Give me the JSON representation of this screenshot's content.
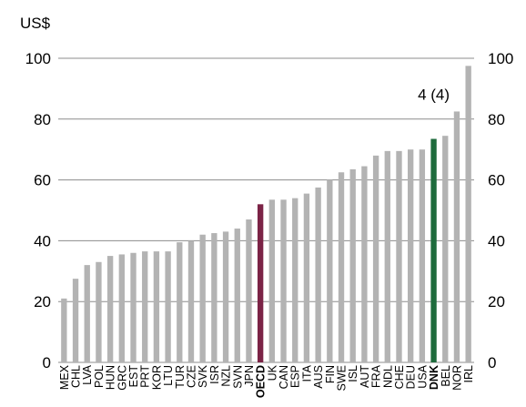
{
  "chart_data": {
    "type": "bar",
    "unit_label": "US$",
    "annotation": "4 (4)",
    "ylim": [
      0,
      100
    ],
    "yticks": [
      0,
      20,
      40,
      60,
      80,
      100
    ],
    "categories": [
      "MEX",
      "CHL",
      "LVA",
      "POL",
      "HUN",
      "GRC",
      "EST",
      "PRT",
      "KOR",
      "LTU",
      "TUR",
      "CZE",
      "SVK",
      "ISR",
      "NZL",
      "SVN",
      "JPN",
      "OECD",
      "UK",
      "CAN",
      "ESP",
      "ITA",
      "AUS",
      "FIN",
      "SWE",
      "ISL",
      "AUT",
      "FRA",
      "NDL",
      "CHE",
      "DEU",
      "USA",
      "DNK",
      "BEL",
      "NOR",
      "IRL"
    ],
    "values": [
      21,
      27.5,
      32,
      33,
      35,
      35.5,
      36,
      36.5,
      36.5,
      36.5,
      39.5,
      40,
      42,
      42.5,
      43,
      44,
      47,
      52,
      53.5,
      53.5,
      54,
      55.5,
      57.5,
      60,
      62.5,
      63.5,
      64.5,
      68,
      69.5,
      69.5,
      70,
      70,
      73.5,
      74.5,
      82.5,
      97.5
    ],
    "highlight": {
      "OECD": "#7B2346",
      "DNK": "#1E6B3C"
    },
    "bold_categories": [
      "OECD",
      "DNK"
    ],
    "colors": {
      "default_bar": "#B3B3B3",
      "gridline": "#8C8C8C"
    },
    "grid": true,
    "legend": "none"
  }
}
